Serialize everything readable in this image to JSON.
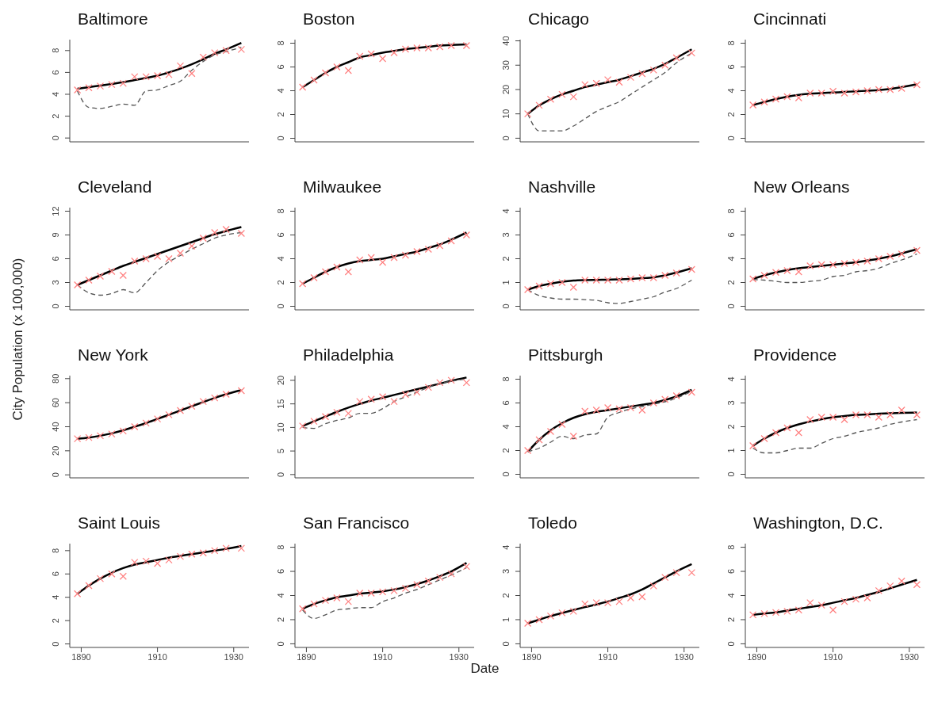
{
  "chart_data": [
    {
      "type": "line",
      "title": "Baltimore",
      "x": [
        1889,
        1892,
        1895,
        1898,
        1901,
        1904,
        1907,
        1910,
        1913,
        1916,
        1919,
        1922,
        1925,
        1928,
        1932
      ],
      "xlim": [
        1887,
        1934
      ],
      "xticks": [
        1890,
        1910,
        1930
      ],
      "ylim": [
        -0.35,
        9
      ],
      "yticks": [
        0,
        2,
        4,
        6,
        8
      ],
      "tick_labels": "y",
      "grid": false,
      "series": [
        {
          "type": "scatter",
          "marker": "cross",
          "color": "#ff7f7f",
          "values": [
            4.4,
            4.6,
            4.75,
            4.9,
            5.0,
            5.6,
            5.6,
            5.7,
            5.8,
            6.6,
            5.9,
            7.4,
            7.8,
            8.0,
            8.1
          ]
        },
        {
          "type": "line",
          "color": "#000000",
          "values": [
            4.5,
            4.65,
            4.8,
            4.95,
            5.1,
            5.3,
            5.5,
            5.7,
            6.0,
            6.35,
            6.75,
            7.2,
            7.7,
            8.1,
            8.7
          ]
        },
        {
          "type": "line",
          "line_style": "dashed",
          "color": "#555555",
          "values": [
            4.3,
            2.8,
            2.7,
            2.9,
            3.1,
            3.0,
            4.3,
            4.4,
            4.8,
            5.2,
            6.2,
            7.0,
            7.6,
            7.9,
            8.3
          ]
        }
      ]
    },
    {
      "type": "line",
      "title": "Boston",
      "x": [
        1889,
        1892,
        1895,
        1898,
        1901,
        1904,
        1907,
        1910,
        1913,
        1916,
        1919,
        1922,
        1925,
        1928,
        1932
      ],
      "xlim": [
        1887,
        1934
      ],
      "xticks": [
        1890,
        1910,
        1930
      ],
      "ylim": [
        -0.3,
        8.3
      ],
      "yticks": [
        0,
        2,
        4,
        6,
        8
      ],
      "tick_labels": "y",
      "grid": false,
      "series": [
        {
          "type": "scatter",
          "marker": "cross",
          "color": "#ff7f7f",
          "values": [
            4.3,
            4.9,
            5.5,
            6.0,
            5.7,
            6.9,
            7.1,
            6.7,
            7.2,
            7.5,
            7.6,
            7.6,
            7.7,
            7.8,
            7.8
          ]
        },
        {
          "type": "line",
          "color": "#000000",
          "values": [
            4.3,
            4.9,
            5.5,
            6.0,
            6.4,
            6.8,
            7.0,
            7.2,
            7.35,
            7.5,
            7.6,
            7.7,
            7.8,
            7.85,
            7.9
          ]
        }
      ]
    },
    {
      "type": "line",
      "title": "Chicago",
      "x": [
        1889,
        1892,
        1895,
        1898,
        1901,
        1904,
        1907,
        1910,
        1913,
        1916,
        1919,
        1922,
        1925,
        1928,
        1932
      ],
      "xlim": [
        1887,
        1934
      ],
      "xticks": [
        1890,
        1910,
        1930
      ],
      "ylim": [
        -1.5,
        40.5
      ],
      "yticks": [
        0,
        10,
        20,
        30,
        40
      ],
      "tick_labels": "y",
      "grid": false,
      "series": [
        {
          "type": "scatter",
          "marker": "cross",
          "color": "#ff7f7f",
          "values": [
            10,
            13.5,
            16,
            18,
            17,
            22,
            22.5,
            24,
            23,
            25,
            26.5,
            28,
            30,
            33,
            35
          ]
        },
        {
          "type": "line",
          "color": "#000000",
          "values": [
            10,
            13.5,
            16,
            18,
            19.5,
            21,
            22,
            23,
            24,
            25.5,
            27,
            28.5,
            30.5,
            33,
            36.5
          ]
        },
        {
          "type": "line",
          "line_style": "dashed",
          "color": "#555555",
          "values": [
            10,
            3,
            3,
            3,
            5,
            8,
            11,
            13,
            15,
            18,
            21,
            24,
            27,
            31,
            35
          ]
        }
      ]
    },
    {
      "type": "line",
      "title": "Cincinnati",
      "x": [
        1889,
        1892,
        1895,
        1898,
        1901,
        1904,
        1907,
        1910,
        1913,
        1916,
        1919,
        1922,
        1925,
        1928,
        1932
      ],
      "xlim": [
        1887,
        1934
      ],
      "xticks": [
        1890,
        1910,
        1930
      ],
      "ylim": [
        -0.3,
        8.3
      ],
      "yticks": [
        0,
        2,
        4,
        6,
        8
      ],
      "tick_labels": "y",
      "grid": false,
      "series": [
        {
          "type": "scatter",
          "marker": "cross",
          "color": "#ff7f7f",
          "values": [
            2.8,
            3.05,
            3.3,
            3.5,
            3.4,
            3.8,
            3.8,
            3.95,
            3.8,
            3.9,
            4.0,
            4.1,
            4.1,
            4.2,
            4.5
          ]
        },
        {
          "type": "line",
          "color": "#000000",
          "values": [
            2.8,
            3.05,
            3.3,
            3.5,
            3.65,
            3.75,
            3.8,
            3.85,
            3.9,
            3.95,
            4.0,
            4.05,
            4.15,
            4.3,
            4.55
          ]
        }
      ]
    },
    {
      "type": "line",
      "title": "Cleveland",
      "x": [
        1889,
        1892,
        1895,
        1898,
        1901,
        1904,
        1907,
        1910,
        1913,
        1916,
        1919,
        1922,
        1925,
        1928,
        1932
      ],
      "xlim": [
        1887,
        1934
      ],
      "xticks": [
        1890,
        1910,
        1930
      ],
      "ylim": [
        -0.45,
        12.45
      ],
      "yticks": [
        0,
        3,
        6,
        9,
        12
      ],
      "tick_labels": "y",
      "grid": false,
      "series": [
        {
          "type": "scatter",
          "marker": "cross",
          "color": "#ff7f7f",
          "values": [
            2.7,
            3.3,
            3.8,
            4.4,
            3.9,
            5.7,
            6.0,
            6.3,
            6.0,
            6.7,
            7.6,
            8.6,
            9.3,
            9.7,
            9.2
          ]
        },
        {
          "type": "line",
          "color": "#000000",
          "values": [
            2.7,
            3.3,
            3.9,
            4.5,
            5.1,
            5.6,
            6.1,
            6.6,
            7.1,
            7.6,
            8.1,
            8.6,
            9.1,
            9.5,
            10.0
          ]
        },
        {
          "type": "line",
          "line_style": "dashed",
          "color": "#555555",
          "values": [
            2.7,
            1.7,
            1.4,
            1.6,
            2.1,
            1.7,
            3.0,
            4.5,
            5.6,
            6.4,
            7.2,
            7.9,
            8.6,
            9.0,
            9.3
          ]
        }
      ]
    },
    {
      "type": "line",
      "title": "Milwaukee",
      "x": [
        1889,
        1892,
        1895,
        1898,
        1901,
        1904,
        1907,
        1910,
        1913,
        1916,
        1919,
        1922,
        1925,
        1928,
        1932
      ],
      "xlim": [
        1887,
        1934
      ],
      "xticks": [
        1890,
        1910,
        1930
      ],
      "ylim": [
        -0.3,
        8.3
      ],
      "yticks": [
        0,
        2,
        4,
        6,
        8
      ],
      "tick_labels": "y",
      "grid": false,
      "series": [
        {
          "type": "scatter",
          "marker": "cross",
          "color": "#ff7f7f",
          "values": [
            1.9,
            2.4,
            2.9,
            3.3,
            2.9,
            3.9,
            4.1,
            3.7,
            4.1,
            4.3,
            4.6,
            4.8,
            5.1,
            5.5,
            6.0
          ]
        },
        {
          "type": "line",
          "color": "#000000",
          "values": [
            1.9,
            2.4,
            2.9,
            3.3,
            3.6,
            3.8,
            3.9,
            4.0,
            4.2,
            4.4,
            4.6,
            4.9,
            5.2,
            5.6,
            6.2
          ]
        }
      ]
    },
    {
      "type": "line",
      "title": "Nashville",
      "x": [
        1889,
        1892,
        1895,
        1898,
        1901,
        1904,
        1907,
        1910,
        1913,
        1916,
        1919,
        1922,
        1925,
        1928,
        1932
      ],
      "xlim": [
        1887,
        1934
      ],
      "xticks": [
        1890,
        1910,
        1930
      ],
      "ylim": [
        -0.15,
        4.15
      ],
      "yticks": [
        0,
        1,
        2,
        3,
        4
      ],
      "tick_labels": "y",
      "grid": false,
      "series": [
        {
          "type": "scatter",
          "marker": "cross",
          "color": "#ff7f7f",
          "values": [
            0.7,
            0.85,
            0.95,
            1.0,
            0.8,
            1.1,
            1.1,
            1.1,
            1.1,
            1.15,
            1.2,
            1.2,
            1.3,
            1.4,
            1.55
          ]
        },
        {
          "type": "line",
          "color": "#000000",
          "values": [
            0.7,
            0.85,
            0.95,
            1.03,
            1.08,
            1.1,
            1.11,
            1.12,
            1.13,
            1.15,
            1.18,
            1.22,
            1.3,
            1.42,
            1.6
          ]
        },
        {
          "type": "line",
          "line_style": "dashed",
          "color": "#555555",
          "values": [
            0.7,
            0.45,
            0.35,
            0.3,
            0.3,
            0.28,
            0.25,
            0.15,
            0.12,
            0.2,
            0.3,
            0.4,
            0.6,
            0.75,
            1.1
          ]
        }
      ]
    },
    {
      "type": "line",
      "title": "New Orleans",
      "x": [
        1889,
        1892,
        1895,
        1898,
        1901,
        1904,
        1907,
        1910,
        1913,
        1916,
        1919,
        1922,
        1925,
        1928,
        1932
      ],
      "xlim": [
        1887,
        1934
      ],
      "xticks": [
        1890,
        1910,
        1930
      ],
      "ylim": [
        -0.3,
        8.3
      ],
      "yticks": [
        0,
        2,
        4,
        6,
        8
      ],
      "tick_labels": "y",
      "grid": false,
      "series": [
        {
          "type": "scatter",
          "marker": "cross",
          "color": "#ff7f7f",
          "values": [
            2.3,
            2.6,
            2.85,
            3.0,
            2.9,
            3.4,
            3.5,
            3.5,
            3.6,
            3.7,
            3.8,
            4.0,
            4.2,
            4.4,
            4.7
          ]
        },
        {
          "type": "line",
          "color": "#000000",
          "values": [
            2.3,
            2.6,
            2.85,
            3.05,
            3.2,
            3.3,
            3.4,
            3.5,
            3.6,
            3.7,
            3.85,
            4.0,
            4.2,
            4.45,
            4.8
          ]
        },
        {
          "type": "line",
          "line_style": "dashed",
          "color": "#555555",
          "values": [
            2.25,
            2.2,
            2.1,
            2.0,
            2.0,
            2.1,
            2.2,
            2.5,
            2.6,
            2.9,
            3.0,
            3.2,
            3.6,
            3.9,
            4.4
          ]
        }
      ]
    },
    {
      "type": "line",
      "title": "New York",
      "ylabel": "City Population (x 100,000)",
      "x": [
        1889,
        1892,
        1895,
        1898,
        1901,
        1904,
        1907,
        1910,
        1913,
        1916,
        1919,
        1922,
        1925,
        1928,
        1932
      ],
      "xlim": [
        1887,
        1934
      ],
      "xticks": [
        1890,
        1910,
        1930
      ],
      "ylim": [
        -2.5,
        82.5
      ],
      "yticks": [
        0,
        20,
        40,
        60,
        80
      ],
      "tick_labels": "y",
      "grid": false,
      "series": [
        {
          "type": "scatter",
          "marker": "cross",
          "color": "#ff7f7f",
          "values": [
            30,
            31,
            32.5,
            34,
            36.5,
            40,
            43,
            46.5,
            50,
            53.5,
            57,
            61,
            64,
            67,
            70
          ]
        },
        {
          "type": "line",
          "color": "#000000",
          "values": [
            30,
            31,
            32.5,
            34.5,
            37,
            40,
            43,
            46.5,
            50,
            53.5,
            57,
            60.5,
            64,
            67,
            70.5
          ]
        }
      ]
    },
    {
      "type": "line",
      "title": "Philadelphia",
      "x": [
        1889,
        1892,
        1895,
        1898,
        1901,
        1904,
        1907,
        1910,
        1913,
        1916,
        1919,
        1922,
        1925,
        1928,
        1932
      ],
      "xlim": [
        1887,
        1934
      ],
      "xticks": [
        1890,
        1910,
        1930
      ],
      "ylim": [
        -0.7,
        21
      ],
      "yticks": [
        0,
        5,
        10,
        15,
        20
      ],
      "tick_labels": "y",
      "grid": false,
      "series": [
        {
          "type": "scatter",
          "marker": "cross",
          "color": "#ff7f7f",
          "values": [
            10.3,
            11.3,
            12.3,
            13.2,
            13.0,
            15.5,
            16,
            16.5,
            15.5,
            17,
            17.5,
            18.5,
            19.5,
            20,
            19.5
          ]
        },
        {
          "type": "line",
          "color": "#000000",
          "values": [
            10.3,
            11.3,
            12.3,
            13.3,
            14.2,
            15,
            15.7,
            16.3,
            16.9,
            17.5,
            18.1,
            18.7,
            19.3,
            19.9,
            20.6
          ]
        },
        {
          "type": "line",
          "line_style": "dashed",
          "color": "#555555",
          "values": [
            10,
            9.8,
            10.8,
            11.5,
            12,
            13,
            13,
            14,
            15.5,
            16.5,
            17.5,
            18.5,
            19.3,
            19.8,
            20.3
          ]
        }
      ]
    },
    {
      "type": "line",
      "title": "Pittsburgh",
      "x": [
        1889,
        1892,
        1895,
        1898,
        1901,
        1904,
        1907,
        1910,
        1913,
        1916,
        1919,
        1922,
        1925,
        1928,
        1932
      ],
      "xlim": [
        1887,
        1934
      ],
      "xticks": [
        1890,
        1910,
        1930
      ],
      "ylim": [
        -0.3,
        8.3
      ],
      "yticks": [
        0,
        2,
        4,
        6,
        8
      ],
      "tick_labels": "y",
      "grid": false,
      "series": [
        {
          "type": "scatter",
          "marker": "cross",
          "color": "#ff7f7f",
          "values": [
            2.0,
            2.9,
            3.6,
            4.2,
            3.2,
            5.3,
            5.4,
            5.6,
            5.5,
            5.6,
            5.4,
            6.0,
            6.3,
            6.6,
            6.9
          ]
        },
        {
          "type": "line",
          "color": "#000000",
          "values": [
            1.9,
            2.9,
            3.7,
            4.3,
            4.75,
            5.05,
            5.25,
            5.4,
            5.55,
            5.7,
            5.85,
            6.0,
            6.25,
            6.55,
            7.1
          ]
        },
        {
          "type": "line",
          "line_style": "dashed",
          "color": "#555555",
          "values": [
            1.9,
            2.2,
            2.7,
            3.2,
            3.0,
            3.3,
            3.4,
            4.8,
            5.2,
            5.5,
            5.7,
            5.9,
            6.1,
            6.4,
            7.0
          ]
        }
      ]
    },
    {
      "type": "line",
      "title": "Providence",
      "x": [
        1889,
        1892,
        1895,
        1898,
        1901,
        1904,
        1907,
        1910,
        1913,
        1916,
        1919,
        1922,
        1925,
        1928,
        1932
      ],
      "xlim": [
        1887,
        1934
      ],
      "xticks": [
        1890,
        1910,
        1930
      ],
      "ylim": [
        -0.15,
        4.15
      ],
      "yticks": [
        0,
        1,
        2,
        3,
        4
      ],
      "tick_labels": "y",
      "grid": false,
      "series": [
        {
          "type": "scatter",
          "marker": "cross",
          "color": "#ff7f7f",
          "values": [
            1.2,
            1.5,
            1.75,
            1.95,
            1.75,
            2.3,
            2.4,
            2.4,
            2.3,
            2.5,
            2.5,
            2.4,
            2.5,
            2.7,
            2.5
          ]
        },
        {
          "type": "line",
          "color": "#000000",
          "values": [
            1.2,
            1.5,
            1.75,
            1.95,
            2.1,
            2.22,
            2.32,
            2.4,
            2.45,
            2.5,
            2.52,
            2.55,
            2.57,
            2.58,
            2.6
          ]
        },
        {
          "type": "line",
          "line_style": "dashed",
          "color": "#555555",
          "values": [
            1.1,
            0.9,
            0.9,
            1.0,
            1.1,
            1.1,
            1.3,
            1.5,
            1.6,
            1.75,
            1.85,
            1.95,
            2.1,
            2.2,
            2.3
          ]
        }
      ]
    },
    {
      "type": "line",
      "title": "Saint Louis",
      "x": [
        1889,
        1892,
        1895,
        1898,
        1901,
        1904,
        1907,
        1910,
        1913,
        1916,
        1919,
        1922,
        1925,
        1928,
        1932
      ],
      "xlim": [
        1887,
        1934
      ],
      "xticks": [
        1890,
        1910,
        1930
      ],
      "ylim": [
        -0.3,
        8.6
      ],
      "yticks": [
        0,
        2,
        4,
        6,
        8
      ],
      "grid": false,
      "series": [
        {
          "type": "scatter",
          "marker": "cross",
          "color": "#ff7f7f",
          "values": [
            4.3,
            5.0,
            5.6,
            6.0,
            5.8,
            7.0,
            7.1,
            6.9,
            7.2,
            7.5,
            7.7,
            7.8,
            8.0,
            8.2,
            8.2
          ]
        },
        {
          "type": "line",
          "color": "#000000",
          "values": [
            4.3,
            5.0,
            5.6,
            6.1,
            6.5,
            6.8,
            7.0,
            7.2,
            7.4,
            7.55,
            7.7,
            7.85,
            8.0,
            8.15,
            8.4
          ]
        }
      ]
    },
    {
      "type": "line",
      "title": "San Francisco",
      "xlabel": "Date",
      "x": [
        1889,
        1892,
        1895,
        1898,
        1901,
        1904,
        1907,
        1910,
        1913,
        1916,
        1919,
        1922,
        1925,
        1928,
        1932
      ],
      "xlim": [
        1887,
        1934
      ],
      "xticks": [
        1890,
        1910,
        1930
      ],
      "ylim": [
        -0.3,
        8.3
      ],
      "yticks": [
        0,
        2,
        4,
        6,
        8
      ],
      "grid": false,
      "series": [
        {
          "type": "scatter",
          "marker": "cross",
          "color": "#ff7f7f",
          "values": [
            2.9,
            3.3,
            3.6,
            3.8,
            3.5,
            4.2,
            4.2,
            4.3,
            4.4,
            4.6,
            4.9,
            5.2,
            5.5,
            5.8,
            6.4
          ]
        },
        {
          "type": "line",
          "color": "#000000",
          "values": [
            2.9,
            3.3,
            3.6,
            3.85,
            4.0,
            4.15,
            4.25,
            4.35,
            4.5,
            4.7,
            4.95,
            5.25,
            5.6,
            6.0,
            6.7
          ]
        },
        {
          "type": "line",
          "line_style": "dashed",
          "color": "#555555",
          "values": [
            2.8,
            2.1,
            2.4,
            2.8,
            2.9,
            3.0,
            3.0,
            3.5,
            3.8,
            4.2,
            4.5,
            4.9,
            5.3,
            5.7,
            6.3
          ]
        }
      ]
    },
    {
      "type": "line",
      "title": "Toledo",
      "x": [
        1889,
        1892,
        1895,
        1898,
        1901,
        1904,
        1907,
        1910,
        1913,
        1916,
        1919,
        1922,
        1925,
        1928,
        1932
      ],
      "xlim": [
        1887,
        1934
      ],
      "xticks": [
        1890,
        1910,
        1930
      ],
      "ylim": [
        -0.15,
        4.15
      ],
      "yticks": [
        0,
        1,
        2,
        3,
        4
      ],
      "grid": false,
      "series": [
        {
          "type": "scatter",
          "marker": "cross",
          "color": "#ff7f7f",
          "values": [
            0.85,
            1.0,
            1.15,
            1.28,
            1.35,
            1.65,
            1.7,
            1.7,
            1.75,
            1.9,
            1.95,
            2.4,
            2.75,
            2.95,
            2.95
          ]
        },
        {
          "type": "line",
          "color": "#000000",
          "values": [
            0.85,
            1.0,
            1.15,
            1.28,
            1.4,
            1.52,
            1.63,
            1.75,
            1.9,
            2.05,
            2.25,
            2.5,
            2.75,
            3.0,
            3.3
          ]
        }
      ]
    },
    {
      "type": "line",
      "title": "Washington, D.C.",
      "x": [
        1889,
        1892,
        1895,
        1898,
        1901,
        1904,
        1907,
        1910,
        1913,
        1916,
        1919,
        1922,
        1925,
        1928,
        1932
      ],
      "xlim": [
        1887,
        1934
      ],
      "xticks": [
        1890,
        1910,
        1930
      ],
      "ylim": [
        -0.3,
        8.3
      ],
      "yticks": [
        0,
        2,
        4,
        6,
        8
      ],
      "grid": false,
      "series": [
        {
          "type": "scatter",
          "marker": "cross",
          "color": "#ff7f7f",
          "values": [
            2.4,
            2.5,
            2.6,
            2.7,
            2.8,
            3.4,
            3.2,
            2.8,
            3.5,
            3.7,
            3.8,
            4.4,
            4.8,
            5.2,
            4.9
          ]
        },
        {
          "type": "line",
          "color": "#000000",
          "values": [
            2.4,
            2.5,
            2.6,
            2.75,
            2.9,
            3.05,
            3.2,
            3.4,
            3.6,
            3.8,
            4.05,
            4.3,
            4.6,
            4.9,
            5.3
          ]
        }
      ]
    }
  ]
}
